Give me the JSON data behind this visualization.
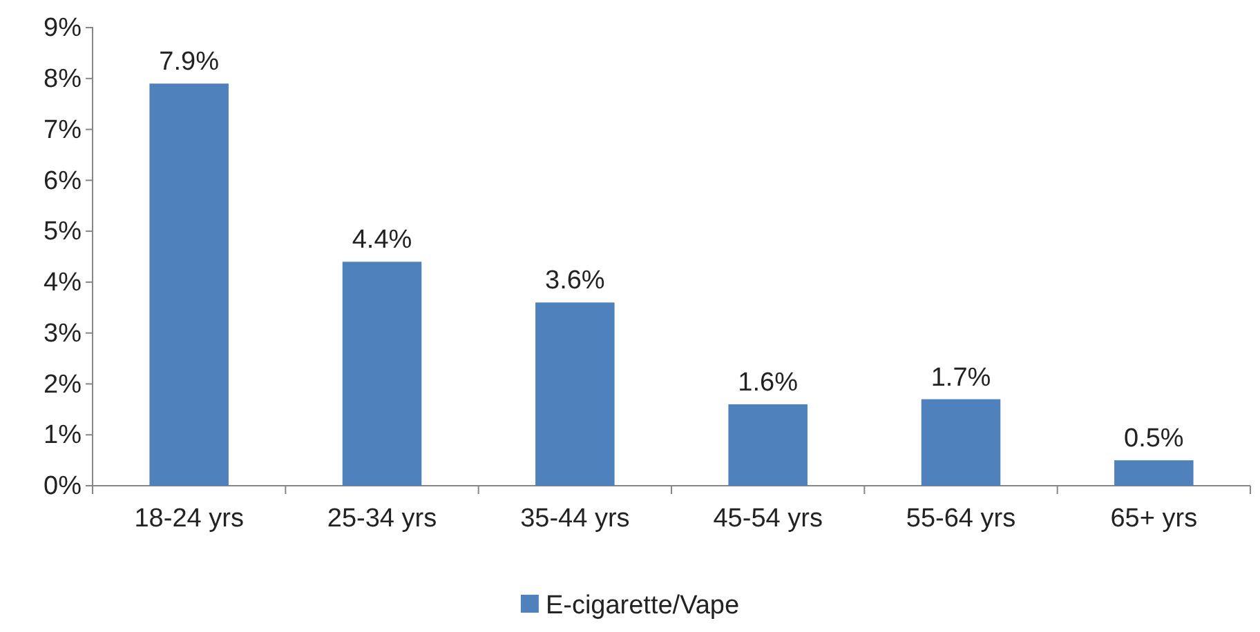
{
  "chart_data": {
    "type": "bar",
    "categories": [
      "18-24 yrs",
      "25-34 yrs",
      "35-44 yrs",
      "45-54 yrs",
      "55-64 yrs",
      "65+ yrs"
    ],
    "series": [
      {
        "name": "E-cigarette/Vape",
        "color": "#4f81bd",
        "values": [
          7.9,
          4.4,
          3.6,
          1.6,
          1.7,
          0.5
        ],
        "value_labels": [
          "7.9%",
          "4.4%",
          "3.6%",
          "1.6%",
          "1.7%",
          "0.5%"
        ]
      }
    ],
    "ylim": [
      0,
      9
    ],
    "yticks": [
      {
        "value": 0,
        "label": "0%"
      },
      {
        "value": 1,
        "label": "1%"
      },
      {
        "value": 2,
        "label": "2%"
      },
      {
        "value": 3,
        "label": "3%"
      },
      {
        "value": 4,
        "label": "4%"
      },
      {
        "value": 5,
        "label": "5%"
      },
      {
        "value": 6,
        "label": "6%"
      },
      {
        "value": 7,
        "label": "7%"
      },
      {
        "value": 8,
        "label": "8%"
      },
      {
        "value": 9,
        "label": "9%"
      }
    ],
    "grid": false,
    "legend": "bottom"
  }
}
